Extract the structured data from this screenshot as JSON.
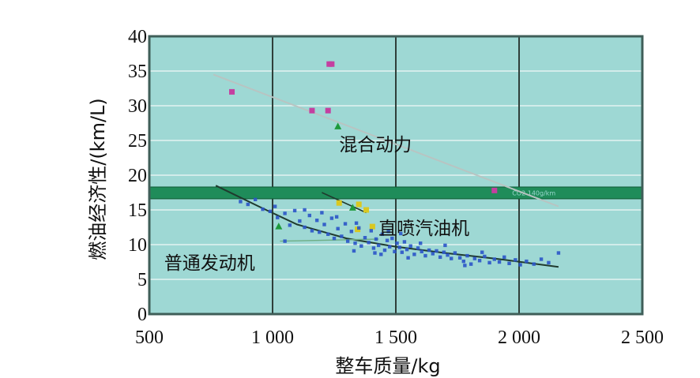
{
  "chart_data": {
    "type": "scatter",
    "xlabel": "整车质量/kg",
    "ylabel": "燃油经济性/(km/L)",
    "xlim": [
      500,
      2500
    ],
    "ylim": [
      0,
      40
    ],
    "x_ticks": [
      500,
      1000,
      1500,
      2000,
      2500
    ],
    "x_tick_labels": [
      "500",
      "1 000",
      "1 500",
      "2 000",
      "2 500"
    ],
    "y_ticks": [
      0,
      5,
      10,
      15,
      20,
      25,
      30,
      35,
      40
    ],
    "y_tick_labels": [
      "0",
      "5",
      "10",
      "15",
      "20",
      "25",
      "30",
      "35",
      "40"
    ],
    "grid": true,
    "colors": {
      "plot_bg": "#9ed8d4",
      "frame": "#3f5e58",
      "hybrid": "#c43fa0",
      "conventional": "#2a55c8",
      "gdi": "#d9c820",
      "trend": "#b8c4c2",
      "trend_conv": "#1f3a2e",
      "band": "#1f8c5a",
      "marker_green": "#1e9a3c"
    },
    "annotations": [
      {
        "text": "混合动力",
        "x": 1270,
        "y": 23.5
      },
      {
        "text": "直喷汽油机",
        "x": 1430,
        "y": 11.5
      },
      {
        "text": "普通发动机",
        "x": 560,
        "y": 6.5
      }
    ],
    "band": {
      "y_low": 16.6,
      "y_high": 18.3,
      "label": "CO2 140g/km"
    },
    "series": [
      {
        "marker": "square",
        "color": "#c43fa0",
        "points": [
          [
            835,
            32
          ],
          [
            1160,
            29.3
          ],
          [
            1225,
            29.3
          ],
          [
            1230,
            36
          ],
          [
            1240,
            36
          ],
          [
            1900,
            17.8
          ]
        ]
      },
      {
        "marker": "triangle",
        "color": "#1e9a3c",
        "points": [
          [
            1265,
            27
          ],
          [
            1325,
            15.3
          ],
          [
            1025,
            12.6
          ]
        ]
      },
      {
        "marker": "square",
        "color": "#d9c820",
        "points": [
          [
            1270,
            16
          ],
          [
            1350,
            15.8
          ],
          [
            1380,
            15
          ],
          [
            1345,
            12.2
          ],
          [
            1405,
            12.6
          ]
        ]
      },
      {
        "marker": "dot",
        "color": "#2a55c8",
        "points": [
          [
            870,
            16.2
          ],
          [
            900,
            15.8
          ],
          [
            930,
            16.5
          ],
          [
            960,
            15.1
          ],
          [
            990,
            14.8
          ],
          [
            1010,
            15.5
          ],
          [
            1020,
            13.9
          ],
          [
            1050,
            14.5
          ],
          [
            1070,
            12.8
          ],
          [
            1090,
            14.9
          ],
          [
            1110,
            13.4
          ],
          [
            1130,
            12.5
          ],
          [
            1150,
            14.2
          ],
          [
            1160,
            12.0
          ],
          [
            1180,
            13.5
          ],
          [
            1190,
            11.8
          ],
          [
            1210,
            12.9
          ],
          [
            1225,
            11.5
          ],
          [
            1240,
            13.8
          ],
          [
            1250,
            10.9
          ],
          [
            1265,
            12.3
          ],
          [
            1280,
            11.2
          ],
          [
            1295,
            13.0
          ],
          [
            1305,
            10.5
          ],
          [
            1320,
            11.9
          ],
          [
            1335,
            10.2
          ],
          [
            1350,
            12.4
          ],
          [
            1360,
            9.8
          ],
          [
            1375,
            11.0
          ],
          [
            1390,
            10.3
          ],
          [
            1400,
            12.0
          ],
          [
            1410,
            9.5
          ],
          [
            1420,
            10.8
          ],
          [
            1430,
            9.9
          ],
          [
            1445,
            11.5
          ],
          [
            1455,
            9.2
          ],
          [
            1465,
            10.6
          ],
          [
            1475,
            9.7
          ],
          [
            1485,
            10.9
          ],
          [
            1495,
            9.0
          ],
          [
            1505,
            10.2
          ],
          [
            1515,
            9.6
          ],
          [
            1525,
            8.9
          ],
          [
            1535,
            10.4
          ],
          [
            1545,
            9.3
          ],
          [
            1560,
            9.8
          ],
          [
            1575,
            8.6
          ],
          [
            1590,
            9.5
          ],
          [
            1605,
            9.0
          ],
          [
            1620,
            8.4
          ],
          [
            1635,
            9.2
          ],
          [
            1650,
            8.7
          ],
          [
            1665,
            9.1
          ],
          [
            1680,
            8.2
          ],
          [
            1695,
            8.9
          ],
          [
            1710,
            8.5
          ],
          [
            1725,
            8.0
          ],
          [
            1740,
            8.8
          ],
          [
            1760,
            8.1
          ],
          [
            1775,
            7.6
          ],
          [
            1790,
            8.4
          ],
          [
            1805,
            7.2
          ],
          [
            1820,
            8.0
          ],
          [
            1840,
            7.7
          ],
          [
            1860,
            8.3
          ],
          [
            1880,
            7.4
          ],
          [
            1900,
            7.9
          ],
          [
            1920,
            7.5
          ],
          [
            1940,
            8.2
          ],
          [
            1960,
            7.3
          ],
          [
            1985,
            7.8
          ],
          [
            2005,
            7.1
          ],
          [
            2030,
            7.6
          ],
          [
            2060,
            7.2
          ],
          [
            2090,
            7.9
          ],
          [
            2120,
            7.4
          ],
          [
            2160,
            8.8
          ],
          [
            1050,
            10.5
          ],
          [
            1130,
            15.0
          ],
          [
            1200,
            14.6
          ],
          [
            1260,
            14.0
          ],
          [
            1340,
            13.1
          ],
          [
            1440,
            8.6
          ],
          [
            1520,
            11.6
          ],
          [
            1600,
            10.2
          ],
          [
            1700,
            9.9
          ],
          [
            1780,
            7.0
          ],
          [
            1850,
            8.9
          ],
          [
            1330,
            9.1
          ],
          [
            1415,
            8.8
          ],
          [
            1470,
            11.9
          ],
          [
            1550,
            8.1
          ]
        ]
      }
    ],
    "trendlines": [
      {
        "name": "hybrid",
        "points": [
          [
            760,
            34.5
          ],
          [
            2160,
            15.5
          ]
        ]
      },
      {
        "name": "conventional",
        "points": [
          [
            770,
            18.5
          ],
          [
            950,
            15.4
          ],
          [
            1100,
            12.9
          ],
          [
            1300,
            10.9
          ],
          [
            1500,
            9.7
          ],
          [
            1700,
            8.8
          ],
          [
            1900,
            8.0
          ],
          [
            2160,
            6.8
          ]
        ]
      },
      {
        "name": "gdi",
        "points": [
          [
            1200,
            17.5
          ],
          [
            1380,
            14.6
          ]
        ]
      },
      {
        "name": "gdi-lower",
        "points": [
          [
            1030,
            10.5
          ],
          [
            1430,
            10.8
          ]
        ]
      }
    ]
  }
}
